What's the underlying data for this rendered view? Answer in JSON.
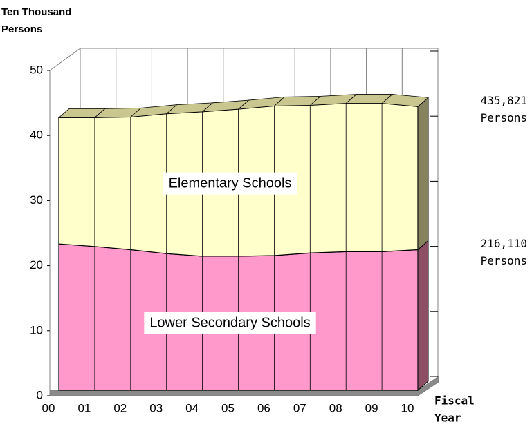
{
  "chart_data": {
    "type": "area3d",
    "stacked": true,
    "y_label": [
      "Ten Thousand",
      "Persons"
    ],
    "x_label": [
      "Fiscal",
      "Year"
    ],
    "categories": [
      "00",
      "01",
      "02",
      "03",
      "04",
      "05",
      "06",
      "07",
      "08",
      "09",
      "10"
    ],
    "series": [
      {
        "name": "Lower Secondary Schools",
        "color": "#ff99cc",
        "side_color": "#8c4f64",
        "values": [
          22.5,
          22.1,
          21.6,
          21.0,
          20.6,
          20.6,
          20.7,
          21.1,
          21.3,
          21.3,
          21.6
        ]
      },
      {
        "name": "Elementary Schools",
        "color": "#ffffcc",
        "side_color": "#85825e",
        "top_color": "#c9c78f",
        "values": [
          19.4,
          19.8,
          20.4,
          21.5,
          22.2,
          22.6,
          23.0,
          22.7,
          22.8,
          22.8,
          22.0
        ]
      }
    ],
    "annotations": [
      {
        "lines": [
          "435,821",
          "Persons"
        ],
        "series": 1
      },
      {
        "lines": [
          "216,110",
          "Persons"
        ],
        "series": 0
      }
    ],
    "ylim": [
      0,
      50
    ],
    "yticks": [
      0,
      10,
      20,
      30,
      40,
      50
    ]
  }
}
